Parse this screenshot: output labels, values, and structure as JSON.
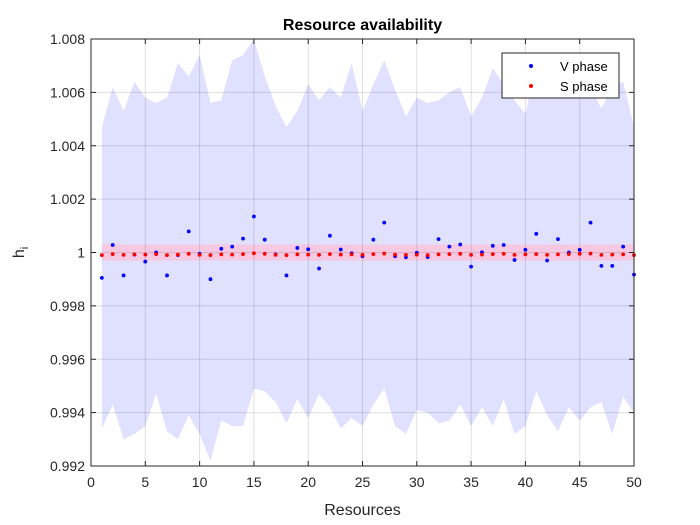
{
  "chart_data": {
    "type": "scatter",
    "title": "Resource availability",
    "xlabel": "Resources",
    "ylabel": "h",
    "ylabel_subscript": "i",
    "xlim": [
      0,
      50
    ],
    "ylim": [
      0.992,
      1.008
    ],
    "xticks": [
      0,
      5,
      10,
      15,
      20,
      25,
      30,
      35,
      40,
      45,
      50
    ],
    "xtick_labels": [
      "0",
      "5",
      "10",
      "15",
      "20",
      "25",
      "30",
      "35",
      "40",
      "45",
      "50"
    ],
    "yticks": [
      0.992,
      0.994,
      0.996,
      0.998,
      1.0,
      1.002,
      1.004,
      1.006,
      1.008
    ],
    "ytick_labels": [
      "0.992",
      "0.994",
      "0.996",
      "0.998",
      "1",
      "1.002",
      "1.004",
      "1.006",
      "1.008"
    ],
    "grid": true,
    "legend_position": "top-right",
    "x": [
      1,
      2,
      3,
      4,
      5,
      6,
      7,
      8,
      9,
      10,
      11,
      12,
      13,
      14,
      15,
      16,
      17,
      18,
      19,
      20,
      21,
      22,
      23,
      24,
      25,
      26,
      27,
      28,
      29,
      30,
      31,
      32,
      33,
      34,
      35,
      36,
      37,
      38,
      39,
      40,
      41,
      42,
      43,
      44,
      45,
      46,
      47,
      48,
      49,
      50
    ],
    "series": [
      {
        "name": "V phase",
        "color": "#0000ff",
        "values": [
          0.99905,
          1.00028,
          0.99914,
          0.99992,
          0.99966,
          1.0,
          0.99914,
          0.9999,
          1.00079,
          0.99995,
          0.999,
          1.00014,
          1.00022,
          1.00052,
          1.00135,
          1.00048,
          0.99993,
          0.99914,
          1.00017,
          1.00012,
          0.9994,
          1.00063,
          1.00011,
          0.99997,
          0.99986,
          1.00048,
          1.00112,
          0.99986,
          0.99982,
          0.99999,
          0.99983,
          1.0005,
          1.00022,
          1.0003,
          0.99947,
          1.00001,
          1.00025,
          1.00028,
          0.99972,
          1.0001,
          1.0007,
          0.9997,
          1.0005,
          1.0,
          1.0001,
          1.00112,
          0.9995,
          0.9995,
          1.00022,
          0.99917
        ],
        "band_upper": [
          1.0047,
          1.0062,
          1.0053,
          1.0064,
          1.0058,
          1.0056,
          1.0058,
          1.0071,
          1.0066,
          1.0074,
          1.0056,
          1.0057,
          1.0072,
          1.0074,
          1.008,
          1.0066,
          1.0055,
          1.0047,
          1.0053,
          1.0063,
          1.0057,
          1.0062,
          1.0058,
          1.0071,
          1.0053,
          1.0063,
          1.0072,
          1.0061,
          1.0051,
          1.0058,
          1.0056,
          1.0057,
          1.006,
          1.0062,
          1.0051,
          1.0058,
          1.0069,
          1.0063,
          1.0057,
          1.0052,
          1.007,
          1.0068,
          1.0062,
          1.0067,
          1.0067,
          1.0062,
          1.0054,
          1.0062,
          1.0064,
          1.0047
        ],
        "band_lower": [
          0.9934,
          0.9943,
          0.993,
          0.9932,
          0.9935,
          0.9947,
          0.9933,
          0.993,
          0.9939,
          0.9932,
          0.9922,
          0.9937,
          0.9935,
          0.9935,
          0.9949,
          0.9948,
          0.9944,
          0.9936,
          0.9945,
          0.9938,
          0.9947,
          0.9942,
          0.9934,
          0.9938,
          0.9935,
          0.9943,
          0.9949,
          0.9935,
          0.9932,
          0.9941,
          0.994,
          0.9936,
          0.9937,
          0.9943,
          0.9935,
          0.9942,
          0.9935,
          0.9945,
          0.9932,
          0.9935,
          0.9948,
          0.9939,
          0.9933,
          0.9942,
          0.9937,
          0.9942,
          0.9944,
          0.9932,
          0.9946,
          0.994
        ]
      },
      {
        "name": "S phase",
        "color": "#ff0000",
        "values": [
          0.9999,
          0.99994,
          0.99991,
          0.99993,
          0.99992,
          0.99994,
          0.9999,
          0.99992,
          0.99995,
          0.99991,
          0.9999,
          0.99993,
          0.99992,
          0.99994,
          0.99997,
          0.99995,
          0.99991,
          0.9999,
          0.99993,
          0.99992,
          0.99991,
          0.99994,
          0.99992,
          0.99993,
          0.99991,
          0.99994,
          0.99996,
          0.99992,
          0.99991,
          0.99992,
          0.9999,
          0.99993,
          0.99994,
          0.99995,
          0.99991,
          0.99992,
          0.99994,
          0.99995,
          0.99991,
          0.99993,
          0.99994,
          0.99991,
          0.99993,
          0.99994,
          0.99995,
          0.99996,
          0.99991,
          0.99992,
          0.99993,
          0.9999
        ],
        "band_upper": 1.0003,
        "band_lower": 0.9997
      }
    ],
    "band_color": "#e0e0ff",
    "s_band_color": "#ffc0d8"
  }
}
